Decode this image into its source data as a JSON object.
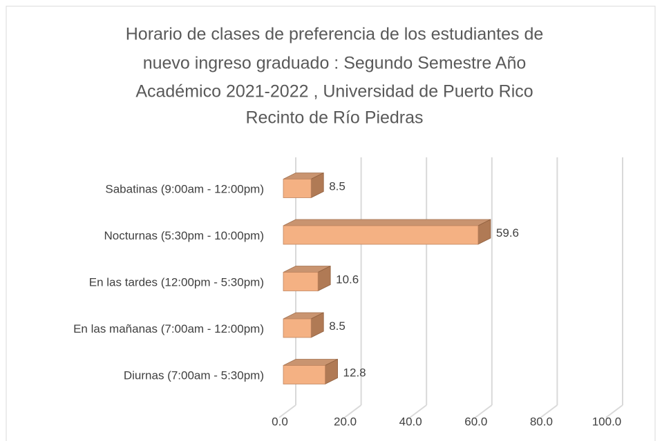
{
  "chart_data": {
    "type": "bar3d",
    "title": [
      "Horario de clases de preferencia de los estudiantes de",
      "nuevo ingreso graduado : Segundo Semestre Año",
      "Académico 2021-2022 , Universidad de Puerto Rico",
      "Recinto de Río Piedras"
    ],
    "categories": [
      "Sabatinas (9:00am - 12:00pm)",
      "Nocturnas (5:30pm - 10:00pm)",
      "En las tardes (12:00pm - 5:30pm)",
      "En las mañanas (7:00am - 12:00pm)",
      "Diurnas (7:00am - 5:30pm)"
    ],
    "values": [
      8.5,
      59.6,
      10.6,
      8.5,
      12.8
    ],
    "color": "#f4b183",
    "xlim": [
      0,
      100
    ],
    "xticks": [
      {
        "value": 0,
        "label": "0.0"
      },
      {
        "value": 20,
        "label": "20.0"
      },
      {
        "value": 40,
        "label": "40.0"
      },
      {
        "value": 60,
        "label": "60.0"
      },
      {
        "value": 80,
        "label": "80.0"
      },
      {
        "value": 100,
        "label": "100.0"
      }
    ],
    "grid": true
  }
}
